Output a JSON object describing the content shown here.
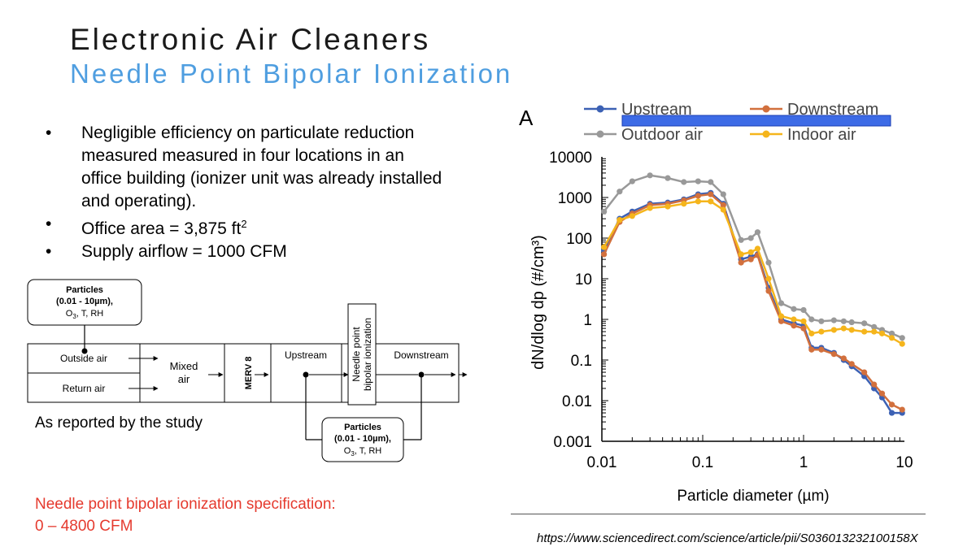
{
  "slide": {
    "title": "Electronic Air Cleaners",
    "subtitle": "Needle Point Bipolar Ionization",
    "bullets": [
      {
        "text": "Negligible efficiency on particulate reduction measured measured in four locations in an office building (ionizer unit was already installed and operating)."
      },
      {
        "text": "Office area = 3,875 ft",
        "sup": "2"
      },
      {
        "text": "Supply airflow = 1000 CFM"
      }
    ],
    "reported": "As reported by the study",
    "spec_line1": "Needle point bipolar ionization specification:",
    "spec_line2": "0 – 4800 CFM",
    "source_url": "https://www.sciencedirect.com/science/article/pii/S036013232100158X"
  },
  "diagram": {
    "top_box": {
      "line1": "Particles",
      "line2": "(0.01 - 10µm),",
      "line3_pre": "O",
      "line3_sub": "3",
      "line3_post": ", T, RH"
    },
    "bottom_box": {
      "line1": "Particles",
      "line2": "(0.01 - 10µm),",
      "line3_pre": "O",
      "line3_sub": "3",
      "line3_post": ", T, RH"
    },
    "outside_air": "Outside air",
    "return_air": "Return air",
    "mixed_line1": "Mixed",
    "mixed_line2": "air",
    "merv": "MERV 8",
    "upstream": "Upstream",
    "ionizer_line1": "Needle point",
    "ionizer_line2": "bipolar ionization",
    "downstream": "Downstream"
  },
  "chart_data": {
    "type": "line",
    "panel_label": "A",
    "xlabel": "Particle diameter (µm)",
    "ylabel": "dN/dlog dp (#/cm³)",
    "x_scale": "log",
    "y_scale": "log",
    "xlim": [
      0.01,
      10
    ],
    "ylim": [
      0.001,
      10000
    ],
    "x_ticks": [
      {
        "v": 0.01,
        "label": "0.01"
      },
      {
        "v": 0.1,
        "label": "0.1"
      },
      {
        "v": 1,
        "label": "1"
      },
      {
        "v": 10,
        "label": "10"
      }
    ],
    "y_ticks": [
      {
        "v": 10000,
        "label": "10000"
      },
      {
        "v": 1000,
        "label": "1000"
      },
      {
        "v": 100,
        "label": "100"
      },
      {
        "v": 10,
        "label": "10"
      },
      {
        "v": 1,
        "label": "1"
      },
      {
        "v": 0.1,
        "label": "0.1"
      },
      {
        "v": 0.01,
        "label": "0.01"
      },
      {
        "v": 0.001,
        "label": "0.001"
      }
    ],
    "legend_placement": "top",
    "series": [
      {
        "name": "Outdoor air",
        "color": "#999999",
        "points": [
          [
            0.0105,
            450
          ],
          [
            0.015,
            1400
          ],
          [
            0.02,
            2500
          ],
          [
            0.03,
            3500
          ],
          [
            0.045,
            3000
          ],
          [
            0.065,
            2400
          ],
          [
            0.09,
            2500
          ],
          [
            0.12,
            2400
          ],
          [
            0.16,
            1200
          ],
          [
            0.24,
            90
          ],
          [
            0.3,
            100
          ],
          [
            0.35,
            140
          ],
          [
            0.45,
            25
          ],
          [
            0.6,
            2.5
          ],
          [
            0.8,
            1.8
          ],
          [
            1.0,
            1.7
          ],
          [
            1.2,
            1.0
          ],
          [
            1.5,
            0.9
          ],
          [
            2,
            0.95
          ],
          [
            2.5,
            0.9
          ],
          [
            3,
            0.85
          ],
          [
            4,
            0.8
          ],
          [
            5,
            0.65
          ],
          [
            6,
            0.55
          ],
          [
            7.5,
            0.45
          ],
          [
            9.5,
            0.35
          ]
        ]
      },
      {
        "name": "Upstream",
        "color": "#3c61b4",
        "points": [
          [
            0.0105,
            50
          ],
          [
            0.015,
            300
          ],
          [
            0.02,
            450
          ],
          [
            0.03,
            700
          ],
          [
            0.045,
            750
          ],
          [
            0.065,
            900
          ],
          [
            0.09,
            1200
          ],
          [
            0.12,
            1300
          ],
          [
            0.16,
            700
          ],
          [
            0.24,
            30
          ],
          [
            0.3,
            35
          ],
          [
            0.35,
            40
          ],
          [
            0.45,
            6
          ],
          [
            0.6,
            1.0
          ],
          [
            0.8,
            0.8
          ],
          [
            1.0,
            0.7
          ],
          [
            1.2,
            0.2
          ],
          [
            1.5,
            0.2
          ],
          [
            2,
            0.15
          ],
          [
            2.5,
            0.1
          ],
          [
            3,
            0.07
          ],
          [
            4,
            0.04
          ],
          [
            5,
            0.02
          ],
          [
            6,
            0.012
          ],
          [
            7.5,
            0.005
          ],
          [
            9.5,
            0.005
          ]
        ]
      },
      {
        "name": "Downstream",
        "color": "#d2703d",
        "points": [
          [
            0.0105,
            40
          ],
          [
            0.015,
            250
          ],
          [
            0.02,
            400
          ],
          [
            0.03,
            650
          ],
          [
            0.045,
            700
          ],
          [
            0.065,
            850
          ],
          [
            0.09,
            1100
          ],
          [
            0.12,
            1200
          ],
          [
            0.16,
            650
          ],
          [
            0.24,
            25
          ],
          [
            0.3,
            30
          ],
          [
            0.35,
            38
          ],
          [
            0.45,
            5
          ],
          [
            0.6,
            0.9
          ],
          [
            0.8,
            0.7
          ],
          [
            1.0,
            0.6
          ],
          [
            1.2,
            0.18
          ],
          [
            1.5,
            0.18
          ],
          [
            2,
            0.14
          ],
          [
            2.5,
            0.11
          ],
          [
            3,
            0.08
          ],
          [
            4,
            0.05
          ],
          [
            5,
            0.025
          ],
          [
            6,
            0.015
          ],
          [
            7.5,
            0.008
          ],
          [
            9.5,
            0.006
          ]
        ]
      },
      {
        "name": "Indoor air",
        "color": "#f5b51c",
        "points": [
          [
            0.0105,
            60
          ],
          [
            0.015,
            280
          ],
          [
            0.02,
            350
          ],
          [
            0.03,
            550
          ],
          [
            0.045,
            600
          ],
          [
            0.065,
            700
          ],
          [
            0.09,
            800
          ],
          [
            0.12,
            800
          ],
          [
            0.16,
            500
          ],
          [
            0.24,
            40
          ],
          [
            0.3,
            45
          ],
          [
            0.35,
            55
          ],
          [
            0.45,
            10
          ],
          [
            0.6,
            1.2
          ],
          [
            0.8,
            1.0
          ],
          [
            1.0,
            0.9
          ],
          [
            1.2,
            0.45
          ],
          [
            1.5,
            0.5
          ],
          [
            2,
            0.55
          ],
          [
            2.5,
            0.6
          ],
          [
            3,
            0.55
          ],
          [
            4,
            0.5
          ],
          [
            5,
            0.5
          ],
          [
            6,
            0.45
          ],
          [
            7.5,
            0.35
          ],
          [
            9.5,
            0.25
          ]
        ]
      }
    ]
  }
}
